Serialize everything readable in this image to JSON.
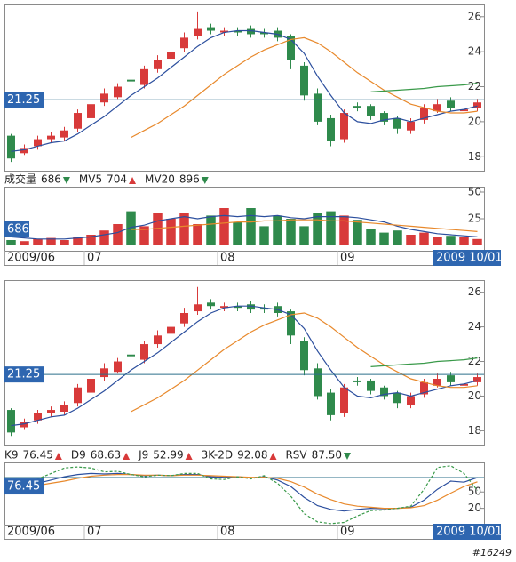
{
  "chart_data": [
    {
      "type": "candlestick",
      "open": [
        19.2,
        18.2,
        18.6,
        19.0,
        19.1,
        19.6,
        20.2,
        21.1,
        21.4,
        22.4,
        22.1,
        23.0,
        23.6,
        24.2,
        24.9,
        25.4,
        25.1,
        25.2,
        25.3,
        25.1,
        25.2,
        24.9,
        23.2,
        21.6,
        20.2,
        19.0,
        20.9,
        20.9,
        20.5,
        20.2,
        19.5,
        20.1,
        20.6,
        21.2,
        20.6,
        20.8
      ],
      "high": [
        19.3,
        18.7,
        19.2,
        19.4,
        19.7,
        20.7,
        21.2,
        21.9,
        22.2,
        22.6,
        23.2,
        23.8,
        24.3,
        25.1,
        26.3,
        25.6,
        25.4,
        25.4,
        25.5,
        25.3,
        25.4,
        25.0,
        23.4,
        21.9,
        20.4,
        20.7,
        21.1,
        21.0,
        20.6,
        20.3,
        20.2,
        21.0,
        21.3,
        21.4,
        20.9,
        21.3
      ],
      "low": [
        17.7,
        18.1,
        18.4,
        18.8,
        18.9,
        19.4,
        20.0,
        20.9,
        21.3,
        22.0,
        21.9,
        22.8,
        23.4,
        24.0,
        24.7,
        25.0,
        24.9,
        24.9,
        24.8,
        24.8,
        24.6,
        23.0,
        21.2,
        19.8,
        18.6,
        18.8,
        20.6,
        20.1,
        19.8,
        19.3,
        19.3,
        19.9,
        20.5,
        20.6,
        20.4,
        20.6
      ],
      "close": [
        17.9,
        18.5,
        19.0,
        19.2,
        19.5,
        20.5,
        21.0,
        21.6,
        22.0,
        22.3,
        23.0,
        23.5,
        24.0,
        24.8,
        25.3,
        25.2,
        25.2,
        25.1,
        25.0,
        25.0,
        24.8,
        23.5,
        21.5,
        20.0,
        18.9,
        20.5,
        20.8,
        20.3,
        20.0,
        19.6,
        20.0,
        20.8,
        21.0,
        20.8,
        20.7,
        21.1
      ],
      "up_color": "#d83a3a",
      "down_color": "#2f8a4c",
      "lines": [
        {
          "color": "#2c4f9e",
          "values": [
            18.3,
            18.4,
            18.6,
            18.8,
            18.9,
            19.3,
            19.8,
            20.3,
            20.9,
            21.5,
            22.0,
            22.5,
            23.1,
            23.7,
            24.3,
            24.8,
            25.1,
            25.2,
            25.2,
            25.1,
            25.0,
            24.7,
            23.9,
            22.6,
            21.5,
            20.5,
            20.0,
            19.9,
            20.1,
            20.2,
            20.0,
            20.2,
            20.4,
            20.6,
            20.7,
            20.9
          ]
        },
        {
          "color": "#e8892c",
          "values": [
            null,
            null,
            null,
            null,
            null,
            null,
            null,
            null,
            null,
            19.1,
            19.5,
            19.9,
            20.4,
            20.9,
            21.5,
            22.1,
            22.7,
            23.2,
            23.7,
            24.1,
            24.4,
            24.7,
            24.8,
            24.5,
            24.0,
            23.4,
            22.8,
            22.3,
            21.8,
            21.4,
            21.0,
            20.8,
            20.6,
            20.5,
            20.5,
            20.6
          ]
        },
        {
          "color": "#3a9a4a",
          "values": [
            null,
            null,
            null,
            null,
            null,
            null,
            null,
            null,
            null,
            null,
            null,
            null,
            null,
            null,
            null,
            null,
            null,
            null,
            null,
            null,
            null,
            null,
            null,
            null,
            null,
            null,
            null,
            21.7,
            21.75,
            21.8,
            21.85,
            21.9,
            22.0,
            22.05,
            22.1,
            22.2
          ]
        }
      ],
      "last_price": 21.25,
      "ylim": [
        17.2,
        26.7
      ],
      "yticks": [
        18,
        20,
        22,
        24,
        26
      ]
    },
    {
      "type": "bar",
      "name": "成交量",
      "value_label": "686",
      "trend": "down",
      "values": [
        5,
        4,
        6,
        7,
        5,
        8,
        10,
        14,
        20,
        32,
        18,
        30,
        25,
        30,
        20,
        28,
        35,
        22,
        35,
        18,
        28,
        25,
        18,
        30,
        32,
        28,
        24,
        15,
        12,
        14,
        10,
        12,
        8,
        9,
        8,
        6
      ],
      "direction": [
        "down",
        "up",
        "up",
        "up",
        "up",
        "up",
        "up",
        "up",
        "up",
        "down",
        "up",
        "up",
        "up",
        "up",
        "up",
        "down",
        "up",
        "down",
        "down",
        "down",
        "down",
        "down",
        "down",
        "down",
        "down",
        "up",
        "down",
        "down",
        "down",
        "down",
        "up",
        "up",
        "up",
        "down",
        "up",
        "up"
      ],
      "up_color": "#d83a3a",
      "down_color": "#2f8a4c",
      "lines": [
        {
          "name": "MV5",
          "color": "#2c4f9e",
          "value_label": "704",
          "trend": "up",
          "values": [
            8,
            7,
            6,
            6,
            6,
            7,
            8,
            10,
            12,
            17,
            19,
            23,
            25,
            27,
            25,
            27,
            28,
            27,
            28,
            27,
            28,
            26,
            25,
            27,
            27,
            27,
            26,
            24,
            22,
            18,
            15,
            13,
            11,
            10,
            9,
            8
          ]
        },
        {
          "name": "MV20",
          "color": "#e8892c",
          "value_label": "896",
          "trend": "down",
          "values": [
            null,
            null,
            null,
            null,
            null,
            null,
            null,
            null,
            null,
            15,
            15,
            16,
            17,
            18,
            19,
            20,
            21,
            22,
            22,
            23,
            23,
            24,
            24,
            24,
            23,
            23,
            22,
            21,
            20,
            19,
            18,
            17,
            16,
            15,
            14,
            13
          ]
        }
      ],
      "categories": [
        "2009/06",
        null,
        null,
        null,
        null,
        null,
        "07",
        null,
        null,
        null,
        null,
        null,
        null,
        null,
        null,
        null,
        "08",
        null,
        null,
        null,
        null,
        null,
        null,
        null,
        null,
        "09",
        null,
        null,
        null,
        null,
        null,
        null,
        null,
        null,
        null,
        "2009 10/01"
      ],
      "ylim": [
        0,
        55
      ],
      "yticks": [
        25,
        50
      ]
    },
    {
      "type": "candlestick",
      "open": [
        19.2,
        18.2,
        18.6,
        19.0,
        19.1,
        19.6,
        20.2,
        21.1,
        21.4,
        22.4,
        22.1,
        23.0,
        23.6,
        24.2,
        24.9,
        25.4,
        25.1,
        25.2,
        25.3,
        25.1,
        25.2,
        24.9,
        23.2,
        21.6,
        20.2,
        19.0,
        20.9,
        20.9,
        20.5,
        20.2,
        19.5,
        20.1,
        20.6,
        21.2,
        20.6,
        20.8
      ],
      "high": [
        19.3,
        18.7,
        19.2,
        19.4,
        19.7,
        20.7,
        21.2,
        21.9,
        22.2,
        22.6,
        23.2,
        23.8,
        24.3,
        25.1,
        26.3,
        25.6,
        25.4,
        25.4,
        25.5,
        25.3,
        25.4,
        25.0,
        23.4,
        21.9,
        20.4,
        20.7,
        21.1,
        21.0,
        20.6,
        20.3,
        20.2,
        21.0,
        21.3,
        21.4,
        20.9,
        21.3
      ],
      "low": [
        17.7,
        18.1,
        18.4,
        18.8,
        18.9,
        19.4,
        20.0,
        20.9,
        21.3,
        22.0,
        21.9,
        22.8,
        23.4,
        24.0,
        24.7,
        25.0,
        24.9,
        24.9,
        24.8,
        24.8,
        24.6,
        23.0,
        21.2,
        19.8,
        18.6,
        18.8,
        20.6,
        20.1,
        19.8,
        19.3,
        19.3,
        19.9,
        20.5,
        20.6,
        20.4,
        20.6
      ],
      "close": [
        17.9,
        18.5,
        19.0,
        19.2,
        19.5,
        20.5,
        21.0,
        21.6,
        22.0,
        22.3,
        23.0,
        23.5,
        24.0,
        24.8,
        25.3,
        25.2,
        25.2,
        25.1,
        25.0,
        25.0,
        24.8,
        23.5,
        21.5,
        20.0,
        18.9,
        20.5,
        20.8,
        20.3,
        20.0,
        19.6,
        20.0,
        20.8,
        21.0,
        20.8,
        20.7,
        21.1
      ],
      "up_color": "#d83a3a",
      "down_color": "#2f8a4c",
      "lines": [
        {
          "color": "#2c4f9e",
          "values": [
            18.3,
            18.4,
            18.6,
            18.8,
            18.9,
            19.3,
            19.8,
            20.3,
            20.9,
            21.5,
            22.0,
            22.5,
            23.1,
            23.7,
            24.3,
            24.8,
            25.1,
            25.2,
            25.2,
            25.1,
            25.0,
            24.7,
            23.9,
            22.6,
            21.5,
            20.5,
            20.0,
            19.9,
            20.1,
            20.2,
            20.0,
            20.2,
            20.4,
            20.6,
            20.7,
            20.9
          ]
        },
        {
          "color": "#e8892c",
          "values": [
            null,
            null,
            null,
            null,
            null,
            null,
            null,
            null,
            null,
            19.1,
            19.5,
            19.9,
            20.4,
            20.9,
            21.5,
            22.1,
            22.7,
            23.2,
            23.7,
            24.1,
            24.4,
            24.7,
            24.8,
            24.5,
            24.0,
            23.4,
            22.8,
            22.3,
            21.8,
            21.4,
            21.0,
            20.8,
            20.6,
            20.5,
            20.5,
            20.6
          ]
        },
        {
          "color": "#3a9a4a",
          "values": [
            null,
            null,
            null,
            null,
            null,
            null,
            null,
            null,
            null,
            null,
            null,
            null,
            null,
            null,
            null,
            null,
            null,
            null,
            null,
            null,
            null,
            null,
            null,
            null,
            null,
            null,
            null,
            21.7,
            21.75,
            21.8,
            21.85,
            21.9,
            22.0,
            22.05,
            22.1,
            22.2
          ]
        }
      ],
      "last_price": 21.25,
      "ylim": [
        17.2,
        26.7
      ],
      "yticks": [
        18,
        20,
        22,
        24,
        26
      ]
    },
    {
      "type": "line",
      "current": 76.45,
      "series": [
        {
          "name": "K9",
          "color": "#2c4f9e",
          "value_label": "76.45",
          "trend": "up",
          "values": [
            60,
            62,
            66,
            72,
            78,
            82,
            84,
            83,
            84,
            82,
            80,
            81,
            80,
            82,
            82,
            78,
            77,
            78,
            76,
            78,
            72,
            60,
            40,
            25,
            18,
            15,
            18,
            20,
            19,
            20,
            22,
            35,
            55,
            70,
            68,
            76.45
          ]
        },
        {
          "name": "D9",
          "color": "#e8892c",
          "value_label": "68.63",
          "trend": "up",
          "values": [
            58,
            60,
            62,
            66,
            70,
            75,
            79,
            81,
            82,
            82,
            81,
            81,
            80,
            81,
            81,
            80,
            79,
            78,
            77,
            77,
            75,
            69,
            59,
            46,
            36,
            28,
            24,
            22,
            20,
            20,
            21,
            25,
            35,
            48,
            60,
            68.63
          ]
        },
        {
          "name": "J9",
          "color": "#3a9a4a",
          "value_label": "52.99",
          "trend": "up",
          "dash": true,
          "values": [
            64,
            66,
            74,
            84,
            94,
            96,
            94,
            87,
            88,
            82,
            78,
            81,
            80,
            84,
            84,
            74,
            73,
            78,
            74,
            80,
            66,
            42,
            10,
            -5,
            -8,
            -6,
            6,
            16,
            17,
            20,
            24,
            55,
            95,
            98,
            84,
            52.99
          ]
        }
      ],
      "extra_legend": [
        {
          "name": "3K-2D",
          "value_label": "92.08",
          "trend": "up"
        },
        {
          "name": "RSV",
          "value_label": "87.50",
          "trend": "down"
        }
      ],
      "categories": [
        "2009/06",
        null,
        null,
        null,
        null,
        null,
        "07",
        null,
        null,
        null,
        null,
        null,
        null,
        null,
        null,
        null,
        "08",
        null,
        null,
        null,
        null,
        null,
        null,
        null,
        null,
        "09",
        null,
        null,
        null,
        null,
        null,
        null,
        null,
        null,
        null,
        "2009 10/01"
      ],
      "ylim": [
        -10,
        101
      ],
      "yticks": [
        20,
        50
      ]
    }
  ],
  "watermark": "#16249"
}
